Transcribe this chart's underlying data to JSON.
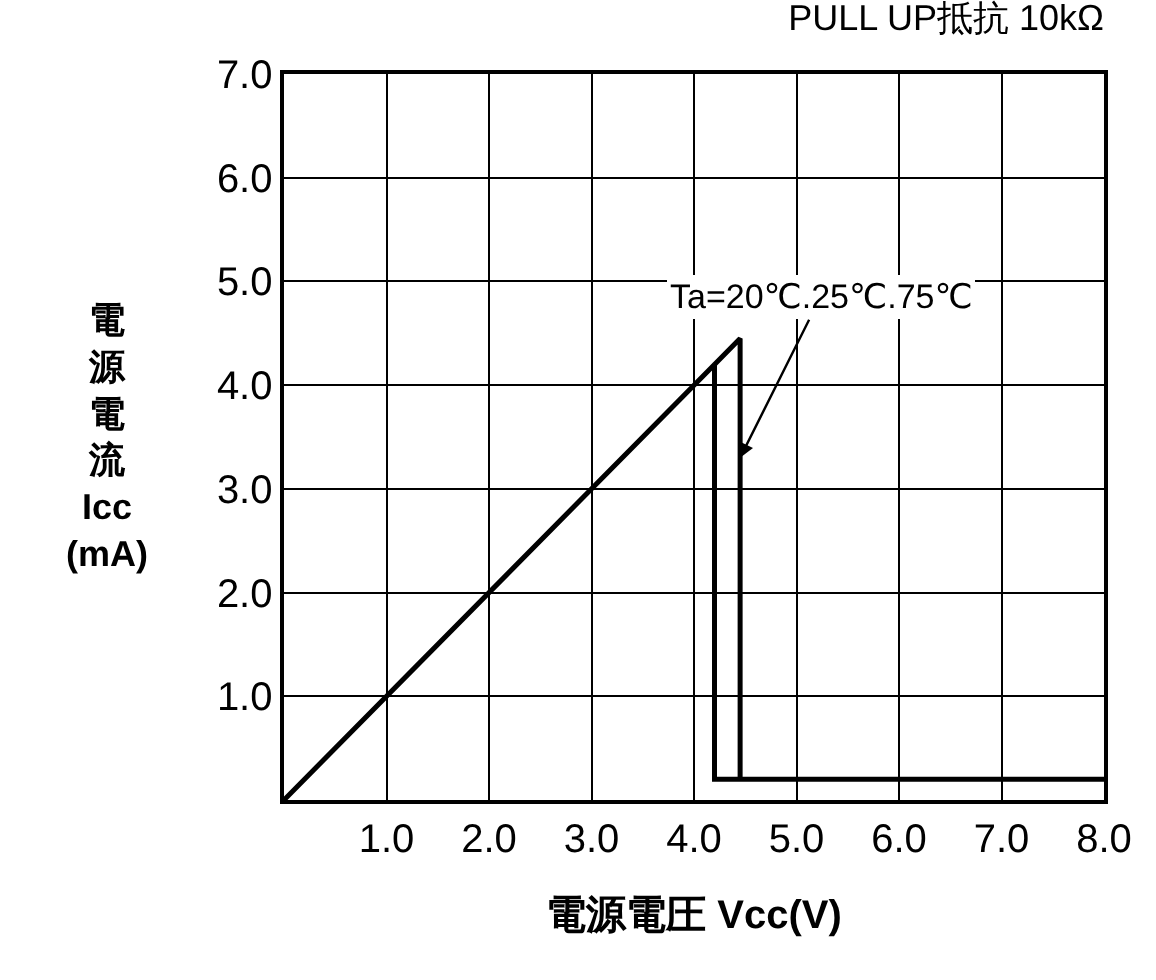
{
  "chart_data": {
    "type": "line",
    "title": "PULL UP抵抗 10kΩ",
    "xlabel": "電源電圧 Vcc(V)",
    "ylabel": "電源電流\nIcc\n(mA)",
    "series": [
      {
        "color": "#000000",
        "x": [
          0,
          4.2,
          4.2,
          8
        ],
        "values": [
          0,
          4.2,
          0.2,
          0.2
        ]
      },
      {
        "color": "#000000",
        "x": [
          4.2,
          4.45,
          4.45
        ],
        "values": [
          4.2,
          4.45,
          0.2
        ]
      }
    ],
    "annotations": [
      {
        "text": "Ta=20℃.25℃.75℃",
        "x": 4.45,
        "y": 3.3
      }
    ],
    "xlim": [
      0,
      8
    ],
    "ylim": [
      0,
      7
    ],
    "xticks": [
      {
        "value": 1,
        "label": "1.0"
      },
      {
        "value": 2,
        "label": "2.0"
      },
      {
        "value": 3,
        "label": "3.0"
      },
      {
        "value": 4,
        "label": "4.0"
      },
      {
        "value": 5,
        "label": "5.0"
      },
      {
        "value": 6,
        "label": "6.0"
      },
      {
        "value": 7,
        "label": "7.0"
      },
      {
        "value": 8,
        "label": "8.0"
      }
    ],
    "yticks": [
      {
        "value": 1,
        "label": "1.0"
      },
      {
        "value": 2,
        "label": "2.0"
      },
      {
        "value": 3,
        "label": "3.0"
      },
      {
        "value": 4,
        "label": "4.0"
      },
      {
        "value": 5,
        "label": "5.0"
      },
      {
        "value": 6,
        "label": "6.0"
      },
      {
        "value": 7,
        "label": "7.0"
      }
    ],
    "grid": true,
    "marker": "none",
    "line_style": "solid"
  }
}
